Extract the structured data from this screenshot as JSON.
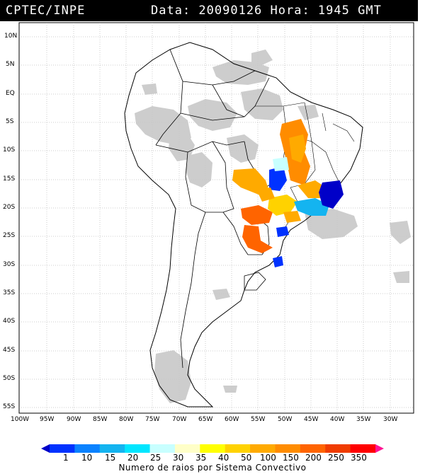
{
  "header": {
    "source": "CPTEC/INPE",
    "datetime": "Data: 20090126 Hora: 1945 GMT"
  },
  "lat_labels": [
    "10N",
    "5N",
    "EQ",
    "5S",
    "10S",
    "15S",
    "20S",
    "25S",
    "30S",
    "35S",
    "40S",
    "45S",
    "50S",
    "55S"
  ],
  "lon_labels": [
    "100W",
    "95W",
    "90W",
    "85W",
    "80W",
    "75W",
    "70W",
    "65W",
    "60W",
    "55W",
    "50W",
    "45W",
    "40W",
    "35W",
    "30W"
  ],
  "colorbar": {
    "title": "Numero de raios por Sistema Convectivo",
    "labels": [
      "1",
      "10",
      "15",
      "20",
      "25",
      "30",
      "35",
      "40",
      "50",
      "100",
      "150",
      "200",
      "250",
      "350"
    ],
    "colors": [
      "#0000c8",
      "#0032ff",
      "#0a82ff",
      "#14b4f0",
      "#00e6ff",
      "#c8ffff",
      "#ffffc8",
      "#ffff00",
      "#ffd200",
      "#ffaa00",
      "#ff8c00",
      "#ff6400",
      "#f03c00",
      "#ff0000",
      "#ff1493"
    ]
  },
  "map_colors": {
    "cloud": "#c8c8c8",
    "dark_blue": "#0000c8",
    "blue": "#0032ff",
    "light_blue": "#14b4f0",
    "cyan": "#c8ffff",
    "yellow": "#ffd200",
    "orange": "#ffaa00",
    "red_orange": "#ff6400"
  }
}
